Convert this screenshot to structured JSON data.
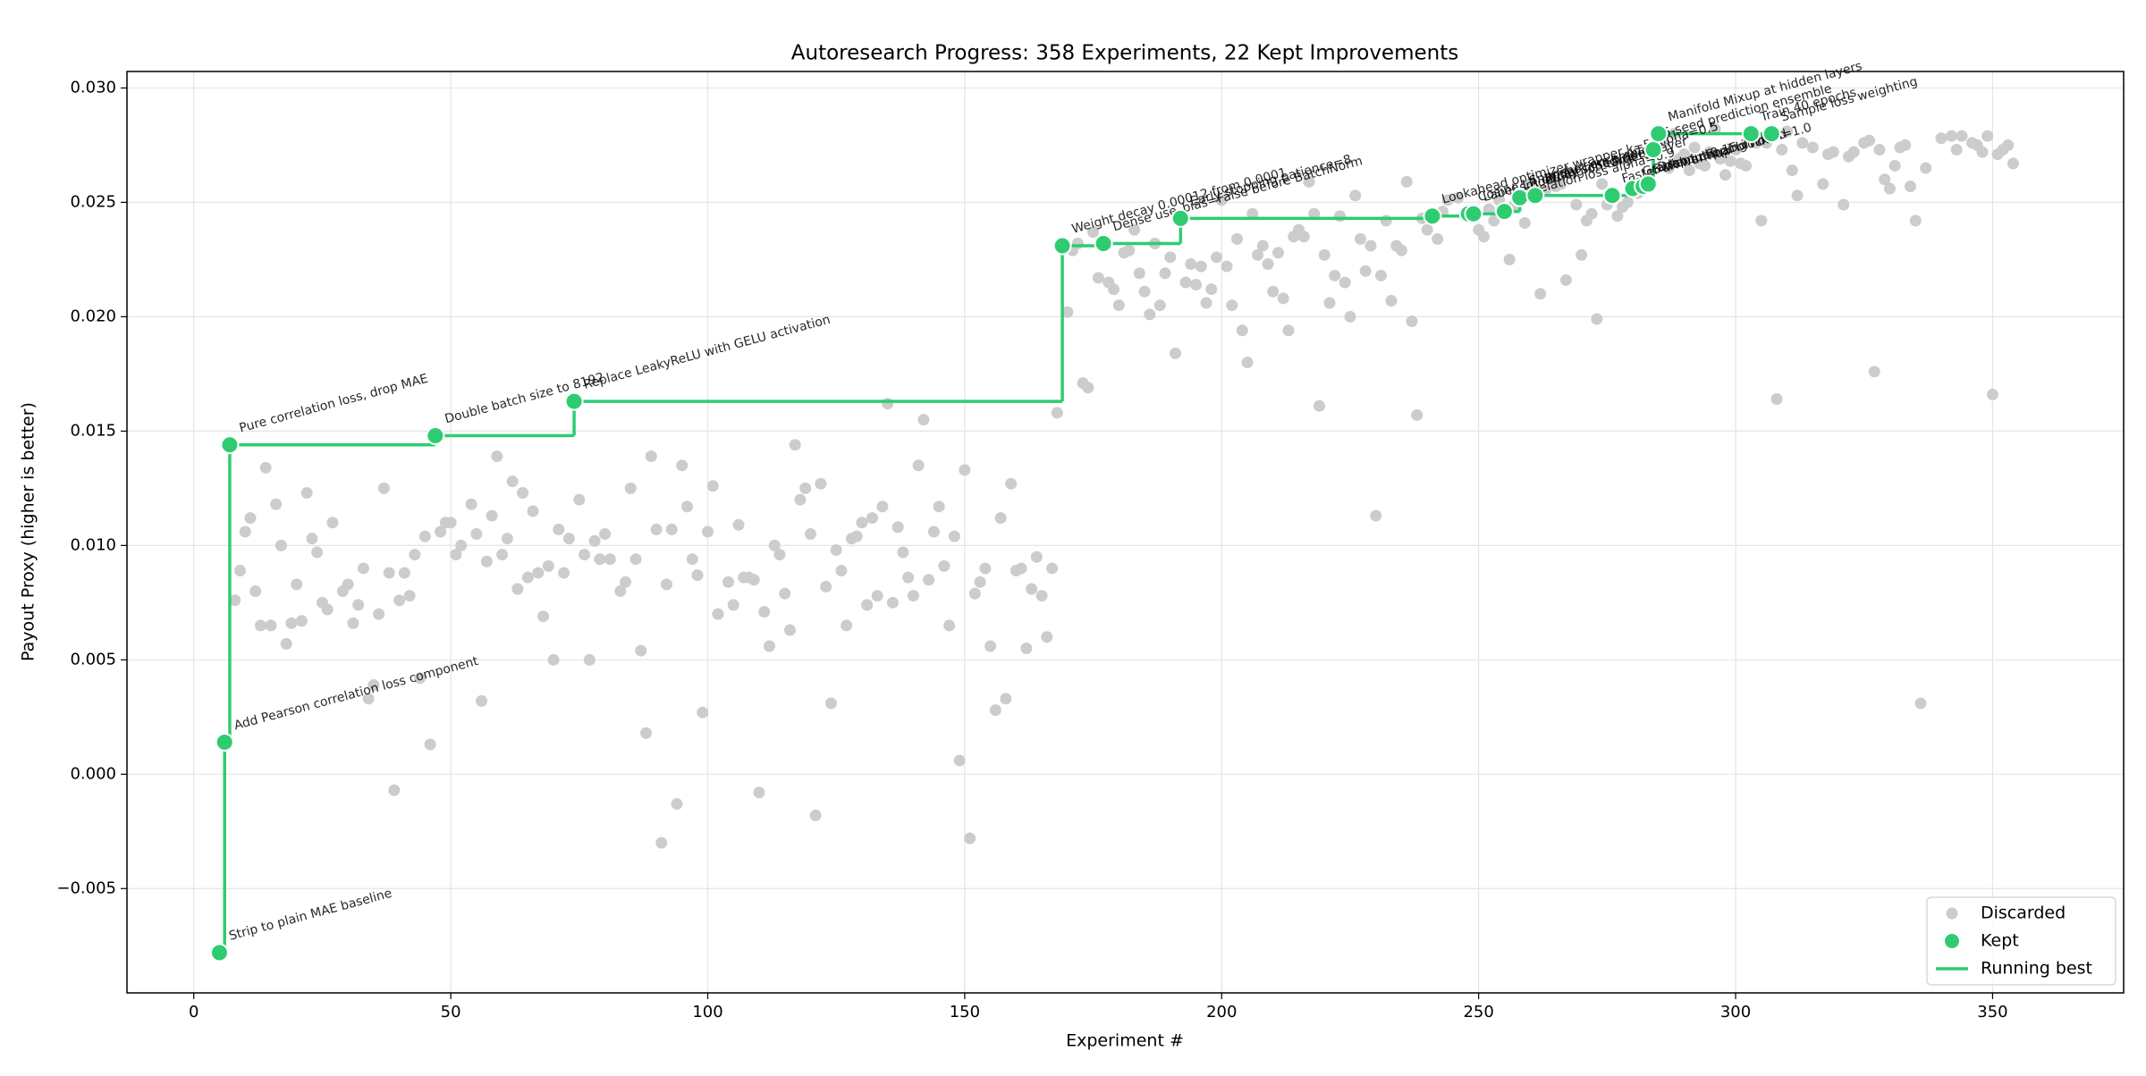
{
  "chart_data": {
    "type": "scatter",
    "title": "Autoresearch Progress: 358 Experiments, 22 Kept Improvements",
    "xlabel": "Experiment #",
    "ylabel": "Payout Proxy (higher is better)",
    "xlim": [
      -13,
      375.5
    ],
    "ylim": [
      -0.00956,
      0.03072
    ],
    "xticks": [
      0,
      50,
      100,
      150,
      200,
      250,
      300,
      350
    ],
    "yticks": [
      {
        "value": -0.005,
        "label": "−0.005"
      },
      {
        "value": 0,
        "label": "0.000"
      },
      {
        "value": 0.005,
        "label": "0.005"
      },
      {
        "value": 0.01,
        "label": "0.010"
      },
      {
        "value": 0.015,
        "label": "0.015"
      },
      {
        "value": 0.02,
        "label": "0.020"
      },
      {
        "value": 0.025,
        "label": "0.025"
      },
      {
        "value": 0.03,
        "label": "0.030"
      }
    ],
    "grid": true,
    "legend": "lower right",
    "series": [
      {
        "name": "Discarded",
        "color": "#cccccc",
        "x": [
          8,
          9,
          10,
          11,
          12,
          13,
          14,
          15,
          16,
          17,
          18,
          19,
          20,
          21,
          22,
          23,
          24,
          25,
          26,
          27,
          29,
          30,
          31,
          32,
          33,
          34,
          35,
          36,
          37,
          38,
          39,
          40,
          41,
          42,
          43,
          44,
          45,
          46,
          48,
          49,
          50,
          51,
          52,
          54,
          55,
          56,
          57,
          58,
          59,
          60,
          61,
          62,
          63,
          64,
          65,
          66,
          67,
          68,
          69,
          70,
          71,
          72,
          73,
          75,
          76,
          77,
          78,
          79,
          80,
          81,
          83,
          84,
          85,
          86,
          87,
          88,
          89,
          90,
          91,
          92,
          93,
          94,
          95,
          96,
          97,
          98,
          99,
          100,
          101,
          102,
          104,
          105,
          106,
          107,
          108,
          109,
          110,
          111,
          112,
          113,
          114,
          115,
          116,
          117,
          118,
          119,
          120,
          121,
          122,
          123,
          124,
          125,
          126,
          127,
          128,
          129,
          130,
          131,
          132,
          133,
          134,
          135,
          136,
          137,
          138,
          139,
          140,
          141,
          142,
          143,
          144,
          145,
          146,
          147,
          148,
          149,
          150,
          151,
          152,
          153,
          154,
          155,
          156,
          157,
          158,
          159,
          160,
          161,
          162,
          163,
          164,
          165,
          166,
          167,
          168,
          170,
          171,
          172,
          173,
          174,
          175,
          176,
          178,
          179,
          180,
          181,
          182,
          183,
          184,
          185,
          186,
          187,
          188,
          189,
          190,
          191,
          193,
          194,
          195,
          196,
          197,
          198,
          199,
          200,
          201,
          202,
          203,
          204,
          205,
          206,
          207,
          208,
          209,
          210,
          211,
          212,
          213,
          214,
          215,
          216,
          217,
          218,
          219,
          220,
          221,
          222,
          223,
          224,
          225,
          226,
          227,
          228,
          229,
          230,
          231,
          232,
          233,
          234,
          235,
          236,
          237,
          238,
          239,
          240,
          242,
          243,
          244,
          246,
          250,
          251,
          252,
          253,
          254,
          256,
          257,
          259,
          260,
          262,
          263,
          264,
          265,
          266,
          267,
          268,
          269,
          270,
          271,
          272,
          273,
          274,
          275,
          277,
          278,
          279,
          281,
          286,
          287,
          288,
          289,
          290,
          291,
          292,
          293,
          294,
          295,
          296,
          297,
          298,
          299,
          300,
          301,
          302,
          304,
          305,
          306,
          308,
          309,
          310,
          311,
          312,
          313,
          315,
          317,
          318,
          319,
          321,
          322,
          323,
          325,
          326,
          327,
          328,
          329,
          330,
          331,
          332,
          333,
          334,
          335,
          336,
          337,
          340,
          342,
          343,
          344,
          346,
          347,
          348,
          349,
          350,
          351,
          352,
          353,
          354
        ],
        "values": [
          0.0076,
          0.0089,
          0.0106,
          0.0112,
          0.008,
          0.0065,
          0.0134,
          0.0065,
          0.0118,
          0.01,
          0.0057,
          0.0066,
          0.0083,
          0.0067,
          0.0123,
          0.0103,
          0.0097,
          0.0075,
          0.0072,
          0.011,
          0.008,
          0.0083,
          0.0066,
          0.0074,
          0.009,
          0.0033,
          0.0039,
          0.007,
          0.0125,
          0.0088,
          -0.0007,
          0.0076,
          0.0088,
          0.0078,
          0.0096,
          0.0042,
          0.0104,
          0.0013,
          0.0106,
          0.011,
          0.011,
          0.0096,
          0.01,
          0.0118,
          0.0105,
          0.0032,
          0.0093,
          0.0113,
          0.0139,
          0.0096,
          0.0103,
          0.0128,
          0.0081,
          0.0123,
          0.0086,
          0.0115,
          0.0088,
          0.0069,
          0.0091,
          0.005,
          0.0107,
          0.0088,
          0.0103,
          0.012,
          0.0096,
          0.005,
          0.0102,
          0.0094,
          0.0105,
          0.0094,
          0.008,
          0.0084,
          0.0125,
          0.0094,
          0.0054,
          0.0018,
          0.0139,
          0.0107,
          -0.003,
          0.0083,
          0.0107,
          -0.0013,
          0.0135,
          0.0117,
          0.0094,
          0.0087,
          0.0027,
          0.0106,
          0.0126,
          0.007,
          0.0084,
          0.0074,
          0.0109,
          0.0086,
          0.0086,
          0.0085,
          -0.0008,
          0.0071,
          0.0056,
          0.01,
          0.0096,
          0.0079,
          0.0063,
          0.0144,
          0.012,
          0.0125,
          0.0105,
          -0.0018,
          0.0127,
          0.0082,
          0.0031,
          0.0098,
          0.0089,
          0.0065,
          0.0103,
          0.0104,
          0.011,
          0.0074,
          0.0112,
          0.0078,
          0.0117,
          0.0162,
          0.0075,
          0.0108,
          0.0097,
          0.0086,
          0.0078,
          0.0135,
          0.0155,
          0.0085,
          0.0106,
          0.0117,
          0.0091,
          0.0065,
          0.0104,
          0.0006,
          0.0133,
          -0.0028,
          0.0079,
          0.0084,
          0.009,
          0.0056,
          0.0028,
          0.0112,
          0.0033,
          0.0127,
          0.0089,
          0.009,
          0.0055,
          0.0081,
          0.0095,
          0.0078,
          0.006,
          0.009,
          0.0158,
          0.0202,
          0.0229,
          0.0232,
          0.0171,
          0.0169,
          0.0237,
          0.0217,
          0.0215,
          0.0212,
          0.0205,
          0.0228,
          0.0229,
          0.0238,
          0.0219,
          0.0211,
          0.0201,
          0.0232,
          0.0205,
          0.0219,
          0.0226,
          0.0184,
          0.0215,
          0.0223,
          0.0214,
          0.0222,
          0.0206,
          0.0212,
          0.0226,
          0.0251,
          0.0222,
          0.0205,
          0.0234,
          0.0194,
          0.018,
          0.0245,
          0.0227,
          0.0231,
          0.0223,
          0.0211,
          0.0228,
          0.0208,
          0.0194,
          0.0235,
          0.0238,
          0.0235,
          0.0259,
          0.0245,
          0.0161,
          0.0227,
          0.0206,
          0.0218,
          0.0244,
          0.0215,
          0.02,
          0.0253,
          0.0234,
          0.022,
          0.0231,
          0.0113,
          0.0218,
          0.0242,
          0.0207,
          0.0231,
          0.0229,
          0.0259,
          0.0198,
          0.0157,
          0.0243,
          0.0238,
          0.0234,
          0.0246,
          0.0251,
          0.0252,
          0.0238,
          0.0235,
          0.0247,
          0.0242,
          0.0251,
          0.0225,
          0.0249,
          0.0241,
          0.0258,
          0.021,
          0.0255,
          0.026,
          0.0257,
          0.0258,
          0.0216,
          0.0263,
          0.0249,
          0.0227,
          0.0242,
          0.0245,
          0.0199,
          0.0258,
          0.0249,
          0.0244,
          0.0248,
          0.025,
          0.0254,
          0.0276,
          0.0265,
          0.028,
          0.0269,
          0.0271,
          0.0264,
          0.0274,
          0.0267,
          0.0266,
          0.0272,
          0.0282,
          0.0269,
          0.0262,
          0.0268,
          0.0273,
          0.0267,
          0.0266,
          0.0276,
          0.0242,
          0.0276,
          0.0164,
          0.0273,
          0.0281,
          0.0264,
          0.0253,
          0.0276,
          0.0274,
          0.0258,
          0.0271,
          0.0272,
          0.0249,
          0.027,
          0.0272,
          0.0276,
          0.0277,
          0.0176,
          0.0273,
          0.026,
          0.0256,
          0.0266,
          0.0274,
          0.0275,
          0.0257,
          0.0242,
          0.0031,
          0.0265,
          0.0278,
          0.0279,
          0.0273,
          0.0279,
          0.0276,
          0.0275,
          0.0272,
          0.0279,
          0.0166,
          0.0271,
          0.0273,
          0.0275,
          0.0267
        ]
      },
      {
        "name": "Kept",
        "color": "#2ecc71",
        "x": [
          5,
          6,
          7,
          47,
          74,
          169,
          177,
          192,
          241,
          248,
          249,
          255,
          258,
          261,
          276,
          280,
          282,
          283,
          284,
          285,
          303,
          307
        ],
        "values": [
          -0.0078,
          0.0014,
          0.0144,
          0.0148,
          0.0163,
          0.0231,
          0.0232,
          0.0243,
          0.0244,
          0.0245,
          0.0245,
          0.0246,
          0.0252,
          0.0253,
          0.0253,
          0.0256,
          0.0257,
          0.0258,
          0.0273,
          0.028,
          0.028,
          0.028
        ],
        "labels": [
          "Strip to plain MAE baseline",
          "Add Pearson correlation loss component",
          "Pure correlation loss, drop MAE",
          "Double batch size to 8192",
          "Replace LeakyReLU with GELU activation",
          "Weight decay 0.00012 from 0.0001",
          "Dense use_bias=False before BatchNorm",
          "Early stopping patience=8",
          "Lookahead optimizer wrapper k=5 alpha=0.5",
          "Cosine LR decay schedule",
          "Label smoothing on targets",
          "Correlation loss alpha=0.9",
          "Snapshot ensemble",
          "Wider first hidden layer",
          "Faster LR warmup",
          "Gradient clipping norm=1.0",
          "Swish in final block",
          "Dropout 0.15 in head",
          "5-seed prediction ensemble",
          "Manifold Mixup at hidden layers",
          "Train 40 epochs",
          "Sample loss weighting"
        ]
      },
      {
        "name": "Running best",
        "color": "#2ecc71"
      }
    ]
  }
}
